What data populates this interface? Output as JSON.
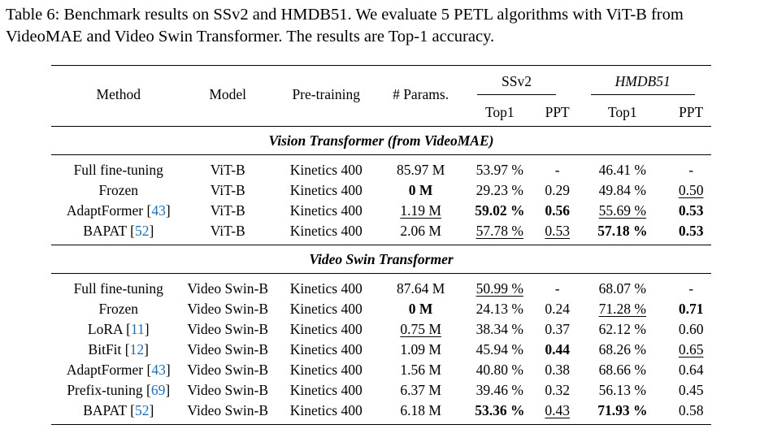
{
  "caption": {
    "label": "Table 6:",
    "text": "Benchmark results on SSv2 and HMDB51. We evaluate 5 PETL algorithms with ViT-B from VideoMAE and Video Swin Transformer. The results are Top-1 accuracy."
  },
  "table": {
    "headers": {
      "method": "Method",
      "model": "Model",
      "pretraining": "Pre-training",
      "params": "# Params.",
      "ssv2": "SSv2",
      "hmdb": "HMDB51",
      "top1": "Top1",
      "ppt": "PPT"
    },
    "sections": [
      {
        "title": "Vision Transformer (from VideoMAE)",
        "rows": [
          {
            "method": "Full fine-tuning",
            "cite": "",
            "model": "ViT-B",
            "pretraining": "Kinetics 400",
            "params": "85.97 M",
            "ssv2_top1": "53.97 %",
            "ssv2_ppt": "-",
            "hmdb_top1": "46.41 %",
            "hmdb_ppt": "-"
          },
          {
            "method": "Frozen",
            "cite": "",
            "model": "ViT-B",
            "pretraining": "Kinetics 400",
            "params": "0 M",
            "ssv2_top1": "29.23 %",
            "ssv2_ppt": "0.29",
            "hmdb_top1": "49.84 %",
            "hmdb_ppt": "0.50"
          },
          {
            "method": "AdaptFormer",
            "cite": "43",
            "model": "ViT-B",
            "pretraining": "Kinetics 400",
            "params": "1.19 M",
            "ssv2_top1": "59.02 %",
            "ssv2_ppt": "0.56",
            "hmdb_top1": "55.69 %",
            "hmdb_ppt": "0.53"
          },
          {
            "method": "BAPAT",
            "cite": "52",
            "model": "ViT-B",
            "pretraining": "Kinetics 400",
            "params": "2.06 M",
            "ssv2_top1": "57.78 %",
            "ssv2_ppt": "0.53",
            "hmdb_top1": "57.18 %",
            "hmdb_ppt": "0.53"
          }
        ]
      },
      {
        "title": "Video Swin Transformer",
        "rows": [
          {
            "method": "Full fine-tuning",
            "cite": "",
            "model": "Video Swin-B",
            "pretraining": "Kinetics 400",
            "params": "87.64 M",
            "ssv2_top1": "50.99 %",
            "ssv2_ppt": "-",
            "hmdb_top1": "68.07 %",
            "hmdb_ppt": "-"
          },
          {
            "method": "Frozen",
            "cite": "",
            "model": "Video Swin-B",
            "pretraining": "Kinetics 400",
            "params": "0 M",
            "ssv2_top1": "24.13 %",
            "ssv2_ppt": "0.24",
            "hmdb_top1": "71.28 %",
            "hmdb_ppt": "0.71"
          },
          {
            "method": "LoRA",
            "cite": "11",
            "model": "Video Swin-B",
            "pretraining": "Kinetics 400",
            "params": "0.75 M",
            "ssv2_top1": "38.34 %",
            "ssv2_ppt": "0.37",
            "hmdb_top1": "62.12 %",
            "hmdb_ppt": "0.60"
          },
          {
            "method": "BitFit",
            "cite": "12",
            "model": "Video Swin-B",
            "pretraining": "Kinetics 400",
            "params": "1.09 M",
            "ssv2_top1": "45.94 %",
            "ssv2_ppt": "0.44",
            "hmdb_top1": "68.26 %",
            "hmdb_ppt": "0.65"
          },
          {
            "method": "AdaptFormer",
            "cite": "43",
            "model": "Video Swin-B",
            "pretraining": "Kinetics 400",
            "params": "1.56 M",
            "ssv2_top1": "40.80 %",
            "ssv2_ppt": "0.38",
            "hmdb_top1": "68.66 %",
            "hmdb_ppt": "0.64"
          },
          {
            "method": "Prefix-tuning",
            "cite": "69",
            "model": "Video Swin-B",
            "pretraining": "Kinetics 400",
            "params": "6.37 M",
            "ssv2_top1": "39.46 %",
            "ssv2_ppt": "0.32",
            "hmdb_top1": "56.13 %",
            "hmdb_ppt": "0.45"
          },
          {
            "method": "BAPAT",
            "cite": "52",
            "model": "Video Swin-B",
            "pretraining": "Kinetics 400",
            "params": "6.18 M",
            "ssv2_top1": "53.36 %",
            "ssv2_ppt": "0.43",
            "hmdb_top1": "71.93 %",
            "hmdb_ppt": "0.58"
          }
        ]
      }
    ]
  }
}
